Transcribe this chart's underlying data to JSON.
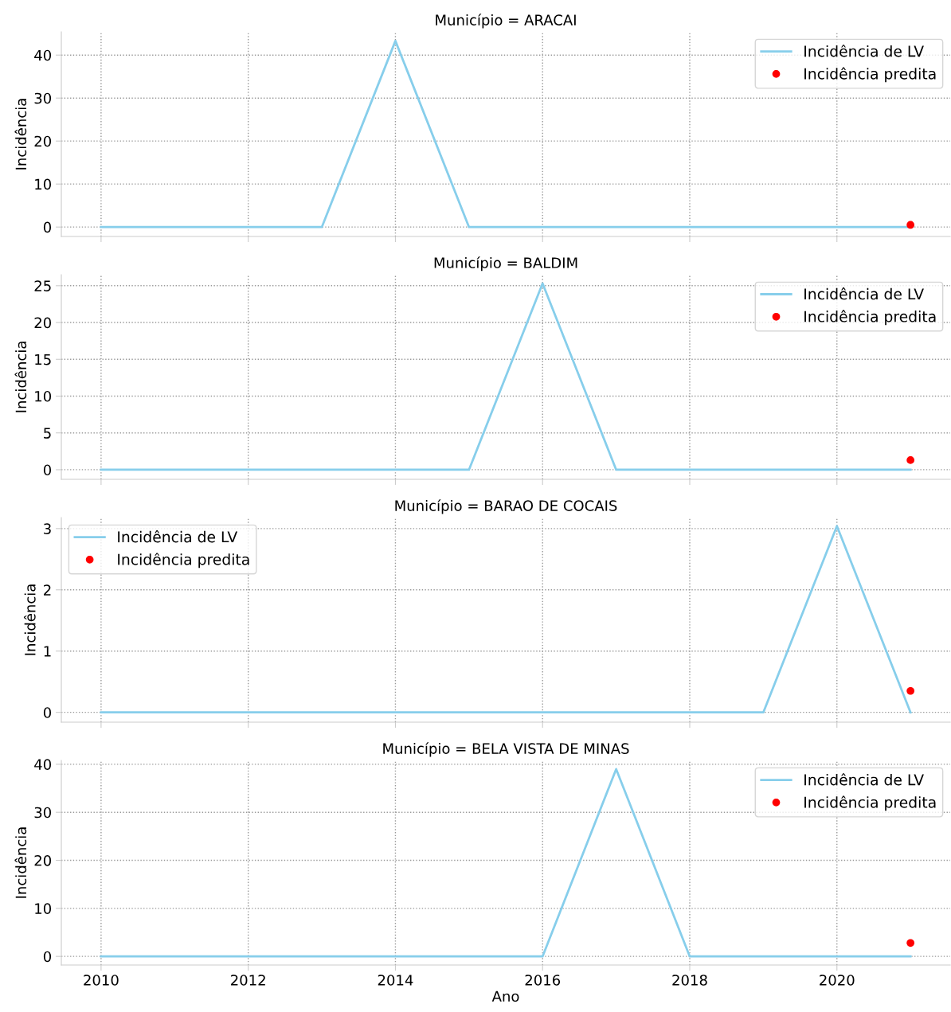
{
  "chart_data": [
    {
      "type": "line",
      "title": "Município = ARACAI",
      "ylabel": "Incidência",
      "x": [
        2010,
        2011,
        2012,
        2013,
        2014,
        2015,
        2016,
        2017,
        2018,
        2019,
        2020,
        2021
      ],
      "xlim": [
        2009.46,
        2021.54
      ],
      "xticks": [
        2010,
        2012,
        2014,
        2016,
        2018,
        2020
      ],
      "ylim": [
        -2.2,
        45.4
      ],
      "yticks": [
        0,
        10,
        20,
        30,
        40
      ],
      "grid": true,
      "legend": "top right",
      "tick_labels": "y",
      "series": [
        {
          "name": "Incidência de LV",
          "color": "#87ceeb",
          "values": [
            0,
            0,
            0,
            0,
            43.3,
            0,
            0,
            0,
            0,
            0,
            0,
            0
          ]
        },
        {
          "name": "Incidência predita",
          "type": "scatter",
          "color": "#ff0000",
          "values": [
            null,
            null,
            null,
            null,
            null,
            null,
            null,
            null,
            null,
            null,
            null,
            0.5
          ]
        }
      ]
    },
    {
      "type": "line",
      "title": "Município = BALDIM",
      "ylabel": "Incidência",
      "x": [
        2010,
        2011,
        2012,
        2013,
        2014,
        2015,
        2016,
        2017,
        2018,
        2019,
        2020,
        2021
      ],
      "xlim": [
        2009.46,
        2021.54
      ],
      "xticks": [
        2010,
        2012,
        2014,
        2016,
        2018,
        2020
      ],
      "ylim": [
        -1.3,
        26.5
      ],
      "yticks": [
        0,
        5,
        10,
        15,
        20,
        25
      ],
      "grid": true,
      "legend": "top right",
      "tick_labels": "y",
      "series": [
        {
          "name": "Incidência de LV",
          "color": "#87ceeb",
          "values": [
            0,
            0,
            0,
            0,
            0,
            0,
            25.3,
            0,
            0,
            0,
            0,
            0
          ]
        },
        {
          "name": "Incidência predita",
          "type": "scatter",
          "color": "#ff0000",
          "values": [
            null,
            null,
            null,
            null,
            null,
            null,
            null,
            null,
            null,
            null,
            null,
            1.3
          ]
        }
      ]
    },
    {
      "type": "line",
      "title": "Município = BARAO DE COCAIS",
      "ylabel": "Incidência",
      "x": [
        2010,
        2011,
        2012,
        2013,
        2014,
        2015,
        2016,
        2017,
        2018,
        2019,
        2020,
        2021
      ],
      "xlim": [
        2009.46,
        2021.54
      ],
      "xticks": [
        2010,
        2012,
        2014,
        2016,
        2018,
        2020
      ],
      "ylim": [
        -0.16,
        3.18
      ],
      "yticks": [
        0,
        1,
        2,
        3
      ],
      "grid": true,
      "legend": "top left",
      "tick_labels": "y",
      "series": [
        {
          "name": "Incidência de LV",
          "color": "#87ceeb",
          "values": [
            0,
            0,
            0,
            0,
            0,
            0,
            0,
            0,
            0,
            0,
            3.04,
            0
          ]
        },
        {
          "name": "Incidência predita",
          "type": "scatter",
          "color": "#ff0000",
          "values": [
            null,
            null,
            null,
            null,
            null,
            null,
            null,
            null,
            null,
            null,
            null,
            0.35
          ]
        }
      ]
    },
    {
      "type": "line",
      "title": "Município = BELA VISTA DE MINAS",
      "xlabel": "Ano",
      "ylabel": "Incidência",
      "x": [
        2010,
        2011,
        2012,
        2013,
        2014,
        2015,
        2016,
        2017,
        2018,
        2019,
        2020,
        2021
      ],
      "xlim": [
        2009.46,
        2021.54
      ],
      "xticks": [
        2010,
        2012,
        2014,
        2016,
        2018,
        2020
      ],
      "ylim": [
        -1.8,
        40.8
      ],
      "yticks": [
        0,
        10,
        20,
        30,
        40
      ],
      "grid": true,
      "legend": "top right",
      "series": [
        {
          "name": "Incidência de LV",
          "color": "#87ceeb",
          "values": [
            0,
            0,
            0,
            0,
            0,
            0,
            0,
            39,
            0,
            0,
            0,
            0
          ]
        },
        {
          "name": "Incidência predita",
          "type": "scatter",
          "color": "#ff0000",
          "values": [
            null,
            null,
            null,
            null,
            null,
            null,
            null,
            null,
            null,
            null,
            null,
            2.8
          ]
        }
      ]
    }
  ]
}
